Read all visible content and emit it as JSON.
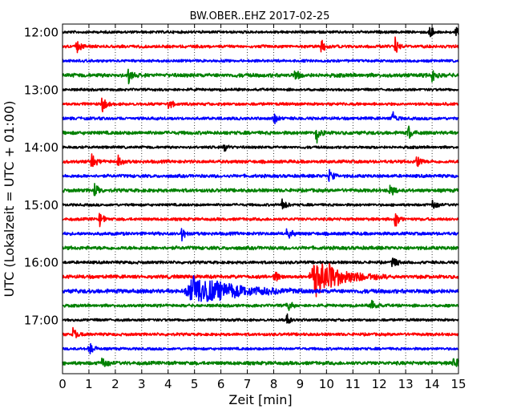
{
  "chart_data": {
    "type": "line",
    "title": "BW.OBER..EHZ 2017-02-25",
    "xlabel": "Zeit  [min]",
    "ylabel": "UTC (Lokalzeit = UTC + 01:00)",
    "xlim": [
      0,
      15
    ],
    "x_ticks": [
      "0",
      "1",
      "2",
      "3",
      "4",
      "5",
      "6",
      "7",
      "8",
      "9",
      "10",
      "11",
      "12",
      "13",
      "14",
      "15"
    ],
    "y_ticks": [
      "12:00",
      "13:00",
      "14:00",
      "15:00",
      "16:00",
      "17:00"
    ],
    "trace_interval_minutes": 15,
    "start_time": "12:00",
    "grid": "vertical-dotted",
    "trace_colors": [
      "#000000",
      "#ff0000",
      "#0000ff",
      "#008000"
    ],
    "series": [
      {
        "start": "12:00",
        "color": "#000000",
        "amplitude": 0.9,
        "events": [
          {
            "x": 13.9,
            "amp": 1.6
          },
          {
            "x": 14.9,
            "amp": 1.5
          }
        ]
      },
      {
        "start": "12:15",
        "color": "#ff0000",
        "amplitude": 1.0,
        "events": [
          {
            "x": 0.5,
            "amp": 2.0
          },
          {
            "x": 9.8,
            "amp": 1.6
          },
          {
            "x": 12.6,
            "amp": 1.8
          }
        ]
      },
      {
        "start": "12:30",
        "color": "#0000ff",
        "amplitude": 0.9,
        "events": []
      },
      {
        "start": "12:45",
        "color": "#008000",
        "amplitude": 1.3,
        "events": [
          {
            "x": 2.5,
            "amp": 1.8
          },
          {
            "x": 8.8,
            "amp": 1.6
          },
          {
            "x": 14.0,
            "amp": 1.6
          }
        ]
      },
      {
        "start": "13:00",
        "color": "#000000",
        "amplitude": 0.9,
        "events": []
      },
      {
        "start": "13:15",
        "color": "#ff0000",
        "amplitude": 1.0,
        "events": [
          {
            "x": 1.5,
            "amp": 1.8
          },
          {
            "x": 4.0,
            "amp": 1.6
          }
        ]
      },
      {
        "start": "13:30",
        "color": "#0000ff",
        "amplitude": 1.0,
        "events": [
          {
            "x": 8.0,
            "amp": 1.6
          },
          {
            "x": 12.5,
            "amp": 1.6
          }
        ]
      },
      {
        "start": "13:45",
        "color": "#008000",
        "amplitude": 1.2,
        "events": [
          {
            "x": 9.6,
            "amp": 2.4
          },
          {
            "x": 13.1,
            "amp": 1.6
          }
        ]
      },
      {
        "start": "14:00",
        "color": "#000000",
        "amplitude": 0.9,
        "events": [
          {
            "x": 6.1,
            "amp": 1.8
          }
        ]
      },
      {
        "start": "14:15",
        "color": "#ff0000",
        "amplitude": 1.1,
        "events": [
          {
            "x": 1.1,
            "amp": 1.8
          },
          {
            "x": 2.1,
            "amp": 1.6
          },
          {
            "x": 13.4,
            "amp": 1.6
          }
        ]
      },
      {
        "start": "14:30",
        "color": "#0000ff",
        "amplitude": 1.1,
        "events": [
          {
            "x": 10.1,
            "amp": 1.6
          }
        ]
      },
      {
        "start": "14:45",
        "color": "#008000",
        "amplitude": 1.2,
        "events": [
          {
            "x": 1.2,
            "amp": 1.8
          },
          {
            "x": 12.4,
            "amp": 1.8
          }
        ]
      },
      {
        "start": "15:00",
        "color": "#000000",
        "amplitude": 0.9,
        "events": [
          {
            "x": 8.3,
            "amp": 1.6
          },
          {
            "x": 14.0,
            "amp": 1.6
          }
        ]
      },
      {
        "start": "15:15",
        "color": "#ff0000",
        "amplitude": 1.0,
        "events": [
          {
            "x": 1.4,
            "amp": 1.8
          },
          {
            "x": 12.6,
            "amp": 1.8
          }
        ]
      },
      {
        "start": "15:30",
        "color": "#0000ff",
        "amplitude": 1.1,
        "events": [
          {
            "x": 4.5,
            "amp": 1.6
          },
          {
            "x": 8.5,
            "amp": 1.8
          }
        ]
      },
      {
        "start": "15:45",
        "color": "#008000",
        "amplitude": 1.2,
        "events": []
      },
      {
        "start": "16:00",
        "color": "#000000",
        "amplitude": 1.0,
        "events": [
          {
            "x": 12.5,
            "amp": 1.6
          }
        ]
      },
      {
        "start": "16:15",
        "color": "#ff0000",
        "amplitude": 1.2,
        "events": [
          {
            "x": 9.6,
            "amp": 4.2,
            "width": 0.9
          },
          {
            "x": 8.0,
            "amp": 1.8
          }
        ]
      },
      {
        "start": "16:30",
        "color": "#0000ff",
        "amplitude": 1.4,
        "events": [
          {
            "x": 5.0,
            "amp": 3.2,
            "width": 1.4
          }
        ]
      },
      {
        "start": "16:45",
        "color": "#008000",
        "amplitude": 1.0,
        "events": [
          {
            "x": 8.5,
            "amp": 1.8
          },
          {
            "x": 11.7,
            "amp": 1.6
          }
        ]
      },
      {
        "start": "17:00",
        "color": "#000000",
        "amplitude": 0.9,
        "events": [
          {
            "x": 8.5,
            "amp": 1.6
          }
        ]
      },
      {
        "start": "17:15",
        "color": "#ff0000",
        "amplitude": 1.0,
        "events": [
          {
            "x": 0.4,
            "amp": 1.8
          }
        ]
      },
      {
        "start": "17:30",
        "color": "#0000ff",
        "amplitude": 0.9,
        "events": [
          {
            "x": 1.0,
            "amp": 1.8
          }
        ]
      },
      {
        "start": "17:45",
        "color": "#008000",
        "amplitude": 1.2,
        "events": [
          {
            "x": 1.5,
            "amp": 1.8
          },
          {
            "x": 14.8,
            "amp": 2.0
          }
        ]
      }
    ]
  }
}
